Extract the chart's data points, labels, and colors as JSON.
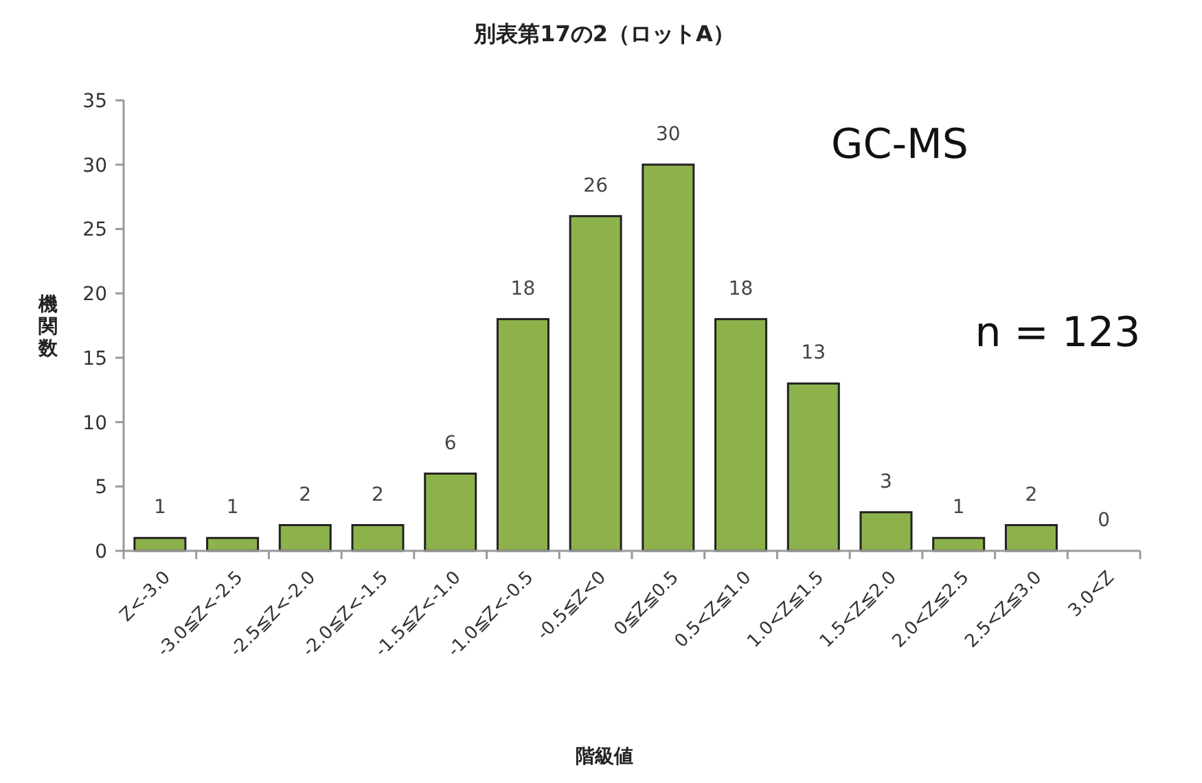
{
  "chart_data": {
    "type": "bar",
    "title": "別表第17の2（ロットA）",
    "xlabel": "階級値",
    "ylabel": "機関数",
    "categories": [
      "Z<-3.0",
      "-3.0≦Z<-2.5",
      "-2.5≦Z<-2.0",
      "-2.0≦Z<-1.5",
      "-1.5≦Z<-1.0",
      "-1.0≦Z<-0.5",
      "-0.5≦Z<0",
      "0≦Z≦0.5",
      "0.5<Z≦1.0",
      "1.0<Z≦1.5",
      "1.5<Z≦2.0",
      "2.0<Z≦2.5",
      "2.5<Z≦3.0",
      "3.0<Z"
    ],
    "values": [
      1,
      1,
      2,
      2,
      6,
      18,
      26,
      30,
      18,
      13,
      3,
      1,
      2,
      0
    ],
    "color": "#8db24c",
    "ylim": [
      0,
      35
    ],
    "yticks": [
      0,
      5,
      10,
      15,
      20,
      25,
      30,
      35
    ],
    "grid": false,
    "data_labels": true,
    "annotations": [
      "GC-MS",
      "n = 123"
    ]
  }
}
